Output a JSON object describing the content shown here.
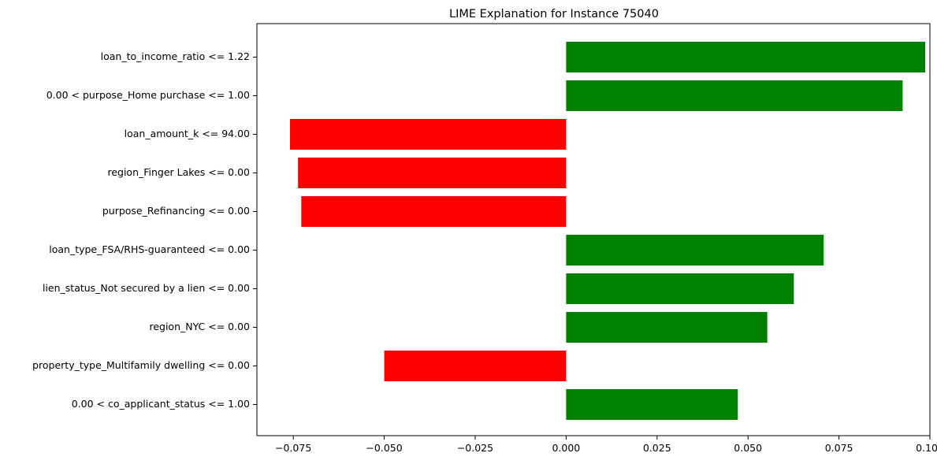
{
  "chart_data": {
    "type": "bar",
    "orientation": "horizontal",
    "title": "LIME Explanation for Instance 75040",
    "xlabel": "",
    "ylabel": "",
    "xlim": [
      -0.085,
      0.1
    ],
    "grid": false,
    "legend": "none",
    "categories": [
      "loan_to_income_ratio <= 1.22",
      "0.00 < purpose_Home purchase <= 1.00",
      "loan_amount_k <= 94.00",
      "region_Finger Lakes <= 0.00",
      "purpose_Refinancing <= 0.00",
      "loan_type_FSA/RHS-guaranteed <= 0.00",
      "lien_status_Not secured by a lien <= 0.00",
      "region_NYC <= 0.00",
      "property_type_Multifamily dwelling <= 0.00",
      "0.00 < co_applicant_status <= 1.00"
    ],
    "values": [
      0.0987,
      0.0925,
      -0.0759,
      -0.0737,
      -0.0728,
      0.0708,
      0.0626,
      0.0553,
      -0.05,
      0.0472
    ],
    "xticks": [
      -0.075,
      -0.05,
      -0.025,
      0.0,
      0.025,
      0.05,
      0.075,
      0.1
    ],
    "xtick_labels": [
      "−0.075",
      "−0.050",
      "−0.025",
      "0.000",
      "0.025",
      "0.050",
      "0.075",
      "0.100"
    ],
    "positive_color": "#008000",
    "negative_color": "#ff0000"
  }
}
